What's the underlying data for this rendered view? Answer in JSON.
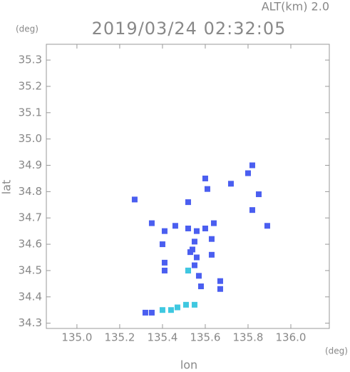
{
  "chart_data": {
    "type": "scatter",
    "title": "2019/03/24 02:32:05",
    "subtitle": "ALT(km) 2.0",
    "y_unit": "(deg)",
    "x_unit": "(deg)",
    "y_label": "lat",
    "x_label": "lon",
    "xlim": [
      134.857,
      136.18
    ],
    "ylim": [
      34.28,
      35.36
    ],
    "xticks": [
      {
        "value": 135,
        "label": "135.0"
      },
      135.2,
      135.4,
      135.6,
      135.8,
      {
        "value": 136,
        "label": "136.0"
      }
    ],
    "yticks": [
      34.3,
      34.4,
      34.5,
      34.6,
      34.7,
      34.8,
      34.9,
      {
        "value": 35,
        "label": "35.0"
      },
      35.1,
      35.2,
      35.3
    ],
    "series": [
      {
        "color": "#4a5ef0",
        "x": [
          135.27,
          135.35,
          135.41,
          135.46,
          135.4,
          135.41,
          135.41,
          135.52,
          135.56,
          135.6,
          135.64,
          135.54,
          135.55,
          135.57,
          135.52,
          135.63,
          135.63,
          135.67,
          135.67,
          135.58,
          135.6,
          135.61,
          135.52,
          135.8,
          135.82,
          135.85,
          135.89,
          135.72,
          135.82,
          135.32,
          135.35,
          135.55,
          135.56,
          135.53
        ],
        "y": [
          34.77,
          34.68,
          34.65,
          34.67,
          34.6,
          34.53,
          34.5,
          34.66,
          34.65,
          34.66,
          34.68,
          34.58,
          34.52,
          34.48,
          34.5,
          34.56,
          34.62,
          34.46,
          34.43,
          34.44,
          34.85,
          34.81,
          34.76,
          34.87,
          34.9,
          34.79,
          34.67,
          34.83,
          34.73,
          34.34,
          34.34,
          34.61,
          34.55,
          34.57
        ]
      },
      {
        "color": "#3fc8e0",
        "x": [
          135.4,
          135.44,
          135.47,
          135.51,
          135.55,
          135.52
        ],
        "y": [
          34.35,
          34.35,
          34.36,
          34.37,
          34.37,
          34.5
        ]
      }
    ]
  }
}
